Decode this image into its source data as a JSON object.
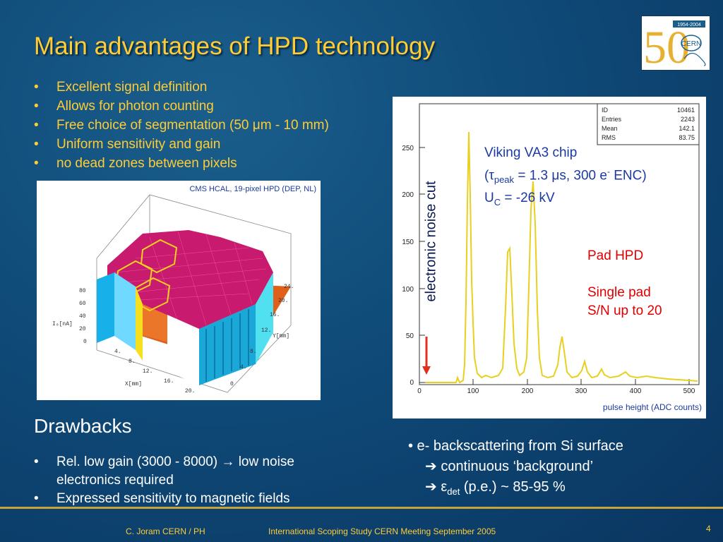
{
  "title": "Main advantages of HPD technology",
  "advantages": [
    "Excellent signal definition",
    "Allows for photon counting",
    "Free choice of segmentation (50 μm - 10 mm)",
    "Uniform sensitivity and gain",
    "no dead zones between pixels"
  ],
  "logo": {
    "years": "1954-2004",
    "number": "50",
    "name": "CERN"
  },
  "plot3d": {
    "caption": "CMS HCAL, 19-pixel HPD (DEP, NL)",
    "z_ticks": [
      "80",
      "60",
      "40",
      "20",
      "0"
    ],
    "z_label": "I₀[nA]",
    "x_ticks": [
      "4.",
      "8.",
      "12.",
      "16.",
      "20."
    ],
    "x_label": "X[mm]",
    "y_ticks": [
      "24.",
      "20.",
      "16.",
      "12.",
      "8.",
      "4.",
      "0"
    ],
    "y_label": "Y[mm]"
  },
  "histogram": {
    "stats": [
      {
        "label": "ID",
        "value": "10461"
      },
      {
        "label": "Entries",
        "value": "2243"
      },
      {
        "label": "Mean",
        "value": "142.1"
      },
      {
        "label": "RMS",
        "value": "83.75"
      }
    ],
    "y_ticks": [
      "250",
      "200",
      "150",
      "100",
      "50",
      "0"
    ],
    "x_ticks": [
      "0",
      "100",
      "200",
      "300",
      "400",
      "500"
    ],
    "caption": "pulse height (ADC counts)"
  },
  "annotation_blue": {
    "line1": "Viking VA3 chip",
    "line2_pre": "(τ",
    "line2_sub": "peak",
    "line2_mid": " = 1.3 μs, 300 e",
    "line2_sup": "-",
    "line2_post": " ENC)",
    "line3_pre": "U",
    "line3_sub": "C",
    "line3_post": " = -26 kV"
  },
  "annotation_red": {
    "line1": "Pad HPD",
    "line2": "Single pad",
    "line3": "S/N up to 20"
  },
  "noise_cut_label": "electronic noise cut",
  "drawbacks_title": "Drawbacks",
  "drawbacks": [
    "Rel. low gain (3000 - 8000) → low noise electronics required",
    "Expressed sensitivity to magnetic fields"
  ],
  "right_notes": {
    "line1": "• e- backscattering from Si surface",
    "line2": "➔ continuous ‘background’",
    "line3_pre": "➔ ε",
    "line3_sub": "det",
    "line3_post": " (p.e.) ~ 85-95 %"
  },
  "footer": {
    "author": "C. Joram  CERN / PH",
    "event": "International Scoping Study   CERN  Meeting    September 2005",
    "page": "4"
  }
}
